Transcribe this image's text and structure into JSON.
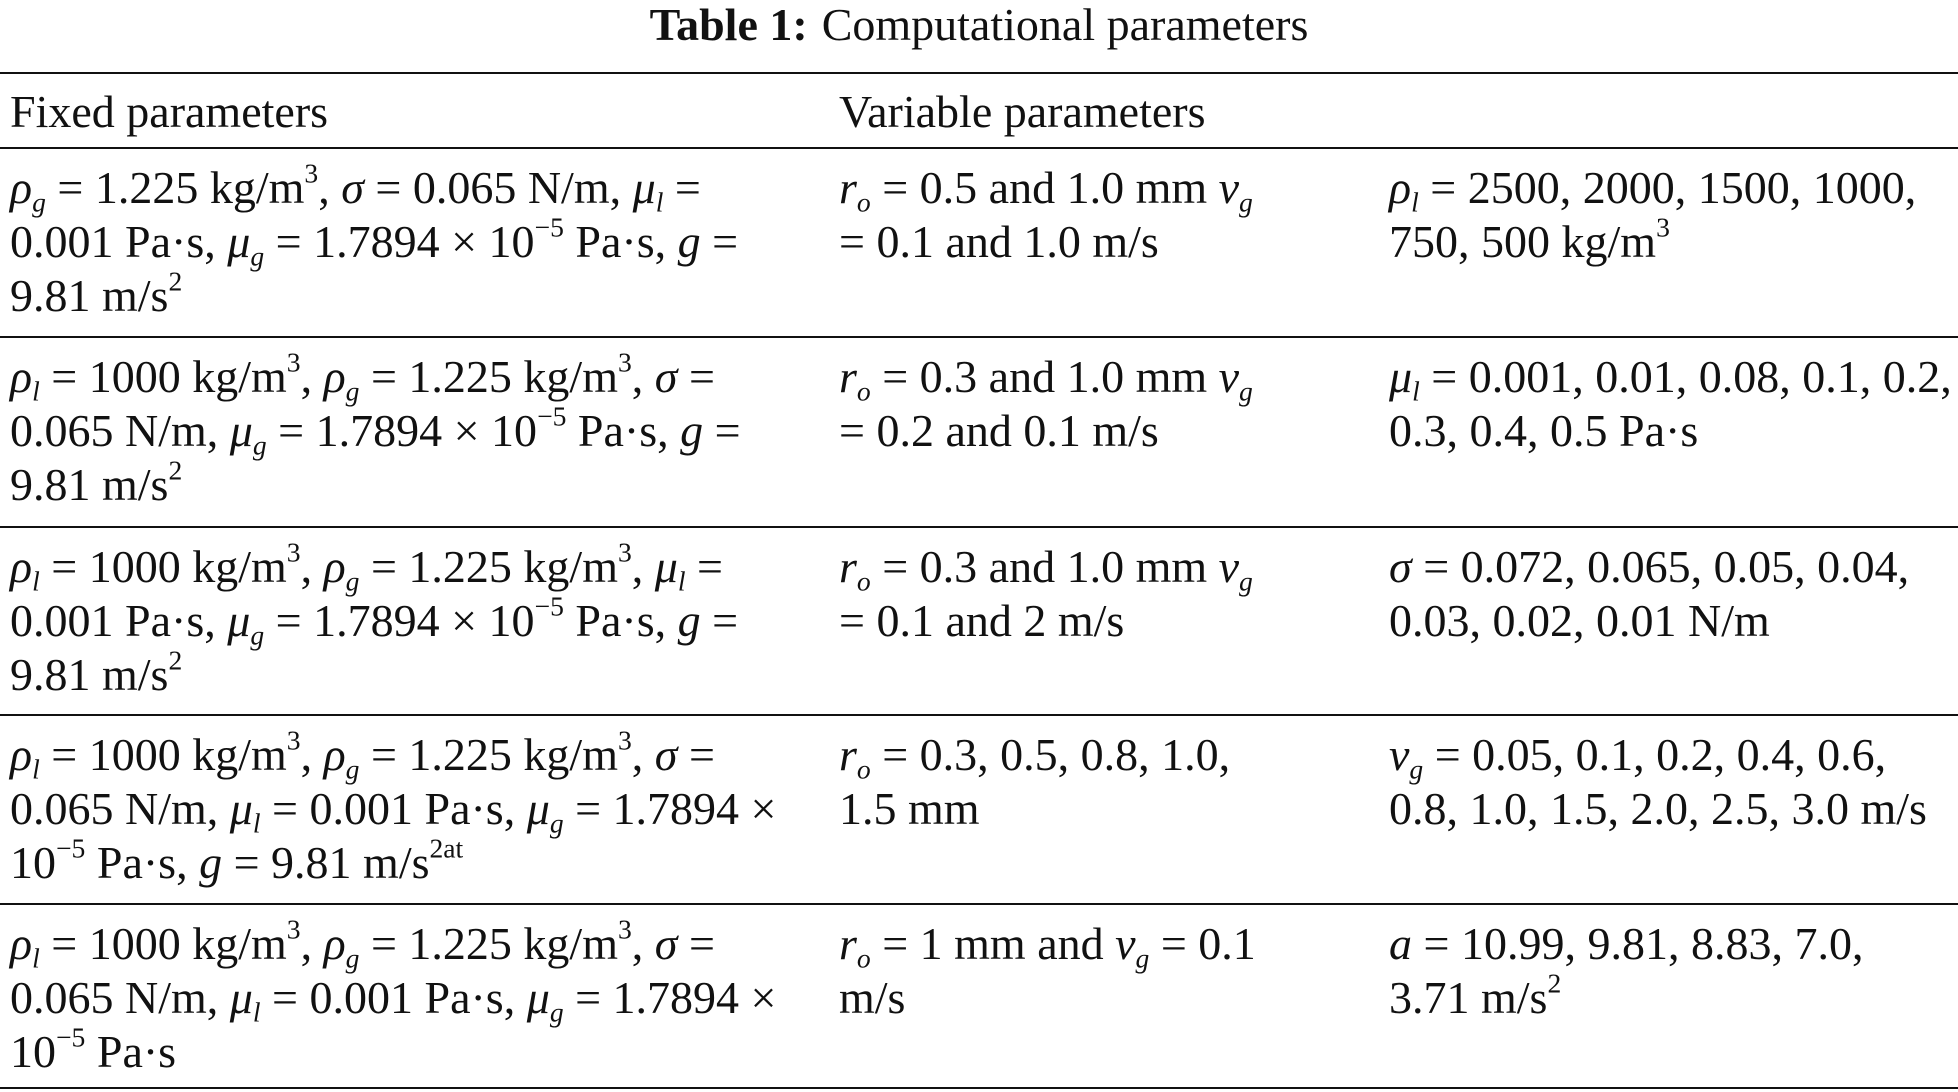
{
  "title": {
    "label": "Table 1:",
    "text": "Computational parameters"
  },
  "table": {
    "header": [
      "Fixed parameters",
      "Variable parameters"
    ],
    "rows": [
      [
        [
          {
            "i": "ρ"
          },
          {
            "sub": "g"
          },
          " = 1.225 kg/m",
          {
            "sup": "3"
          },
          ", ",
          {
            "i": "σ"
          },
          " = 0.065 N/m, ",
          {
            "i": "μ"
          },
          {
            "sub": "l"
          },
          " = 0.001 Pa·s, ",
          {
            "i": "μ"
          },
          {
            "sub": "g"
          },
          " = 1.7894 × 10",
          {
            "sup": "−5"
          },
          " Pa·s, ",
          {
            "i": "g"
          },
          " = 9.81 m/s",
          {
            "sup": "2"
          }
        ],
        [
          {
            "i": "r"
          },
          {
            "sub": "o"
          },
          " = 0.5 and 1.0 mm ",
          {
            "i": "v"
          },
          {
            "sub": "g"
          },
          " = 0.1 and 1.0 m/s"
        ],
        [
          {
            "i": "ρ"
          },
          {
            "sub": "l"
          },
          " = 2500, 2000, 1500, 1000, 750, 500 kg/m",
          {
            "sup": "3"
          }
        ]
      ],
      [
        [
          {
            "i": "ρ"
          },
          {
            "sub": "l"
          },
          " = 1000 kg/m",
          {
            "sup": "3"
          },
          ", ",
          {
            "i": "ρ"
          },
          {
            "sub": "g"
          },
          " = 1.225 kg/m",
          {
            "sup": "3"
          },
          ", ",
          {
            "i": "σ"
          },
          " = 0.065 N/m, ",
          {
            "i": "μ"
          },
          {
            "sub": "g"
          },
          " = 1.7894 × 10",
          {
            "sup": "−5"
          },
          " Pa·s, ",
          {
            "i": "g"
          },
          " = 9.81 m/s",
          {
            "sup": "2"
          }
        ],
        [
          {
            "i": "r"
          },
          {
            "sub": "o"
          },
          " = 0.3 and 1.0 mm ",
          {
            "i": "v"
          },
          {
            "sub": "g"
          },
          " = 0.2 and 0.1 m/s"
        ],
        [
          {
            "i": "μ"
          },
          {
            "sub": "l"
          },
          " = 0.001, 0.01, 0.08, 0.1, 0.2, 0.3, 0.4, 0.5 Pa·s"
        ]
      ],
      [
        [
          {
            "i": "ρ"
          },
          {
            "sub": "l"
          },
          " = 1000 kg/m",
          {
            "sup": "3"
          },
          ", ",
          {
            "i": "ρ"
          },
          {
            "sub": "g"
          },
          " = 1.225 kg/m",
          {
            "sup": "3"
          },
          ", ",
          {
            "i": "μ"
          },
          {
            "sub": "l"
          },
          " = 0.001 Pa·s, ",
          {
            "i": "μ"
          },
          {
            "sub": "g"
          },
          " = 1.7894 × 10",
          {
            "sup": "−5"
          },
          " Pa·s, ",
          {
            "i": "g"
          },
          " = 9.81 m/s",
          {
            "sup": "2"
          }
        ],
        [
          {
            "i": "r"
          },
          {
            "sub": "o"
          },
          " = 0.3 and 1.0 mm ",
          {
            "i": "v"
          },
          {
            "sub": "g"
          },
          " = 0.1 and 2 m/s"
        ],
        [
          {
            "i": "σ"
          },
          " = 0.072, 0.065, 0.05, 0.04, 0.03, 0.02, 0.01 N/m"
        ]
      ],
      [
        [
          {
            "i": "ρ"
          },
          {
            "sub": "l"
          },
          " = 1000 kg/m",
          {
            "sup": "3"
          },
          ", ",
          {
            "i": "ρ"
          },
          {
            "sub": "g"
          },
          " = 1.225 kg/m",
          {
            "sup": "3"
          },
          ", ",
          {
            "i": "σ"
          },
          " = 0.065 N/m, ",
          {
            "i": "μ"
          },
          {
            "sub": "l"
          },
          " = 0.001 Pa·s, ",
          {
            "i": "μ"
          },
          {
            "sub": "g"
          },
          " = 1.7894 × 10",
          {
            "sup": "−5"
          },
          " Pa·s, ",
          {
            "i": "g"
          },
          " = 9.81 m/s",
          {
            "sup": "2at"
          }
        ],
        [
          {
            "i": "r"
          },
          {
            "sub": "o"
          },
          " = 0.3, 0.5, 0.8, 1.0, 1.5 mm"
        ],
        [
          {
            "i": "v"
          },
          {
            "sub": "g"
          },
          " = 0.05, 0.1, 0.2, 0.4, 0.6, 0.8, 1.0, 1.5, 2.0, 2.5, 3.0 m/s"
        ]
      ],
      [
        [
          {
            "i": "ρ"
          },
          {
            "sub": "l"
          },
          " = 1000 kg/m",
          {
            "sup": "3"
          },
          ", ",
          {
            "i": "ρ"
          },
          {
            "sub": "g"
          },
          " = 1.225 kg/m",
          {
            "sup": "3"
          },
          ", ",
          {
            "i": "σ"
          },
          " = 0.065 N/m, ",
          {
            "i": "μ"
          },
          {
            "sub": "l"
          },
          " = 0.001 Pa·s, ",
          {
            "i": "μ"
          },
          {
            "sub": "g"
          },
          " = 1.7894 × 10",
          {
            "sup": "−5"
          },
          " Pa·s"
        ],
        [
          {
            "i": "r"
          },
          {
            "sub": "o"
          },
          " = 1 mm and ",
          {
            "i": "v"
          },
          {
            "sub": "g"
          },
          " = 0.1 m/s"
        ],
        [
          {
            "i": "a"
          },
          " = 10.99, 9.81, 8.83, 7.0, 3.71 m/s",
          {
            "sup": "2"
          }
        ]
      ]
    ]
  }
}
